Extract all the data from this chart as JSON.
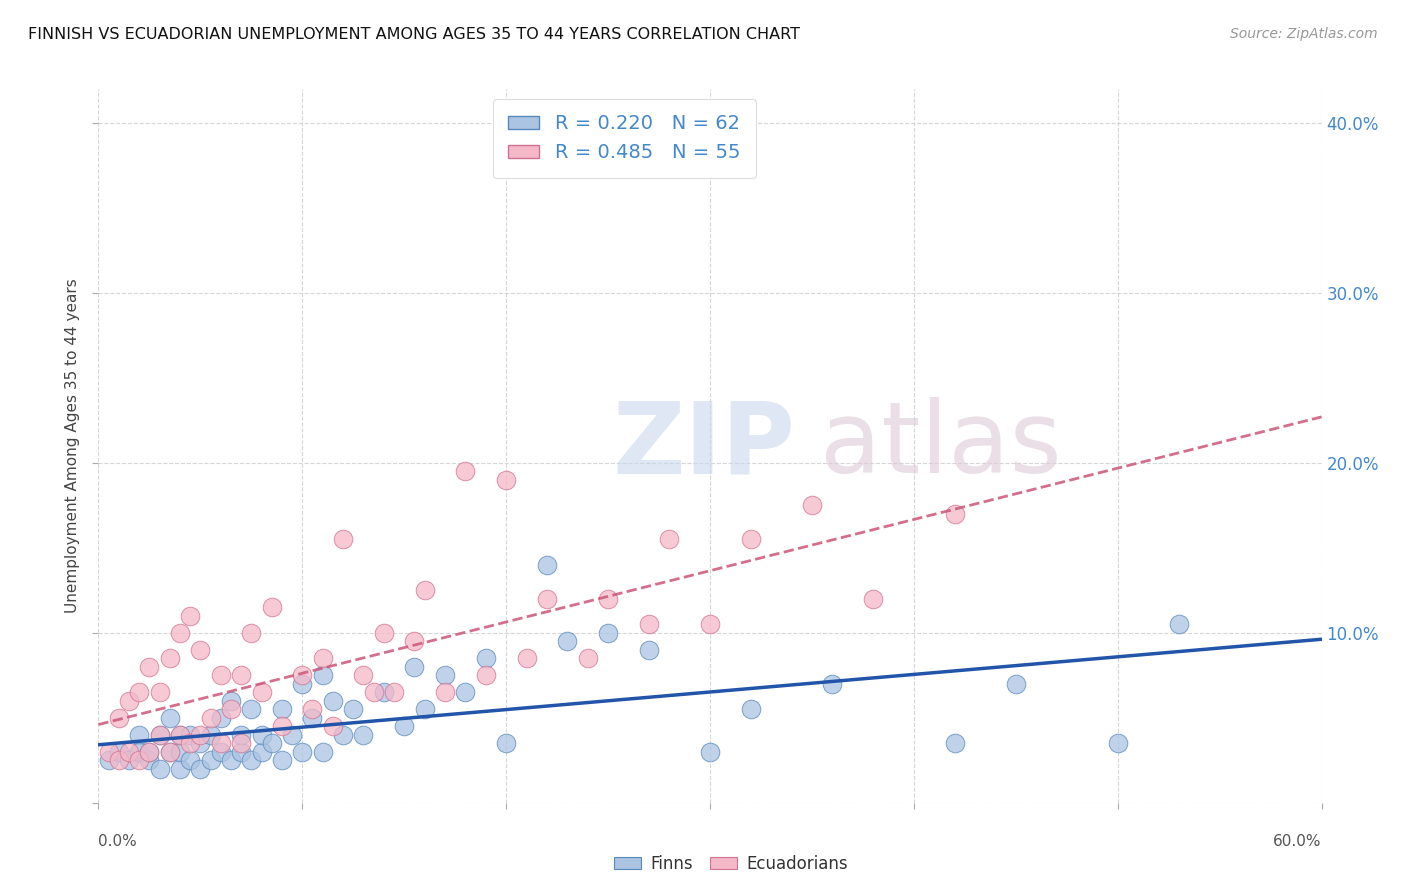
{
  "title": "FINNISH VS ECUADORIAN UNEMPLOYMENT AMONG AGES 35 TO 44 YEARS CORRELATION CHART",
  "source": "Source: ZipAtlas.com",
  "ylabel": "Unemployment Among Ages 35 to 44 years",
  "xlim": [
    0.0,
    0.6
  ],
  "ylim": [
    0.0,
    0.42
  ],
  "ytick_vals": [
    0.0,
    0.1,
    0.2,
    0.3,
    0.4
  ],
  "ytick_labels_right": [
    "",
    "10.0%",
    "20.0%",
    "30.0%",
    "40.0%"
  ],
  "finn_color": "#aac4e2",
  "finn_edge_color": "#5588bb",
  "finn_line_color": "#2255aa",
  "ecuador_color": "#f5b8c8",
  "ecuador_edge_color": "#d07090",
  "ecuador_line_color": "#cc5577",
  "right_axis_color": "#4488cc",
  "background_color": "#ffffff",
  "grid_color": "#cccccc",
  "finn_scatter_x": [
    0.005,
    0.01,
    0.015,
    0.02,
    0.02,
    0.025,
    0.025,
    0.03,
    0.03,
    0.035,
    0.035,
    0.04,
    0.04,
    0.04,
    0.045,
    0.045,
    0.05,
    0.05,
    0.055,
    0.055,
    0.06,
    0.06,
    0.065,
    0.065,
    0.07,
    0.07,
    0.075,
    0.075,
    0.08,
    0.08,
    0.085,
    0.09,
    0.09,
    0.095,
    0.1,
    0.1,
    0.105,
    0.11,
    0.11,
    0.115,
    0.12,
    0.125,
    0.13,
    0.14,
    0.15,
    0.155,
    0.16,
    0.17,
    0.18,
    0.19,
    0.2,
    0.22,
    0.23,
    0.25,
    0.27,
    0.3,
    0.32,
    0.36,
    0.42,
    0.45,
    0.5,
    0.53
  ],
  "finn_scatter_y": [
    0.025,
    0.03,
    0.025,
    0.04,
    0.03,
    0.025,
    0.03,
    0.02,
    0.04,
    0.03,
    0.05,
    0.02,
    0.03,
    0.04,
    0.025,
    0.04,
    0.02,
    0.035,
    0.025,
    0.04,
    0.03,
    0.05,
    0.025,
    0.06,
    0.03,
    0.04,
    0.025,
    0.055,
    0.03,
    0.04,
    0.035,
    0.025,
    0.055,
    0.04,
    0.03,
    0.07,
    0.05,
    0.03,
    0.075,
    0.06,
    0.04,
    0.055,
    0.04,
    0.065,
    0.045,
    0.08,
    0.055,
    0.075,
    0.065,
    0.085,
    0.035,
    0.14,
    0.095,
    0.1,
    0.09,
    0.03,
    0.055,
    0.07,
    0.035,
    0.07,
    0.035,
    0.105
  ],
  "ecuador_scatter_x": [
    0.005,
    0.01,
    0.01,
    0.015,
    0.015,
    0.02,
    0.02,
    0.025,
    0.025,
    0.03,
    0.03,
    0.035,
    0.035,
    0.04,
    0.04,
    0.045,
    0.045,
    0.05,
    0.05,
    0.055,
    0.06,
    0.06,
    0.065,
    0.07,
    0.07,
    0.075,
    0.08,
    0.085,
    0.09,
    0.1,
    0.105,
    0.11,
    0.115,
    0.12,
    0.13,
    0.135,
    0.14,
    0.145,
    0.155,
    0.16,
    0.17,
    0.18,
    0.19,
    0.2,
    0.21,
    0.22,
    0.24,
    0.25,
    0.27,
    0.28,
    0.3,
    0.32,
    0.35,
    0.38,
    0.42
  ],
  "ecuador_scatter_y": [
    0.03,
    0.025,
    0.05,
    0.03,
    0.06,
    0.025,
    0.065,
    0.03,
    0.08,
    0.04,
    0.065,
    0.03,
    0.085,
    0.04,
    0.1,
    0.035,
    0.11,
    0.04,
    0.09,
    0.05,
    0.035,
    0.075,
    0.055,
    0.035,
    0.075,
    0.1,
    0.065,
    0.115,
    0.045,
    0.075,
    0.055,
    0.085,
    0.045,
    0.155,
    0.075,
    0.065,
    0.1,
    0.065,
    0.095,
    0.125,
    0.065,
    0.195,
    0.075,
    0.19,
    0.085,
    0.12,
    0.085,
    0.12,
    0.105,
    0.155,
    0.105,
    0.155,
    0.175,
    0.12,
    0.17
  ]
}
